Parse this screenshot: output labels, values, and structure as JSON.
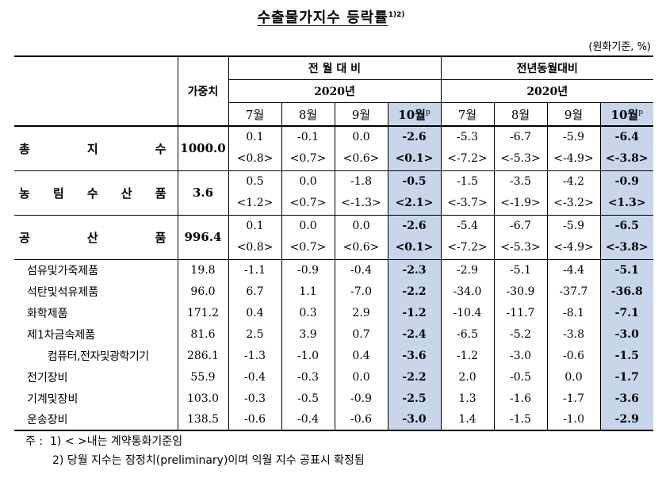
{
  "title": "수출물가지수 등락률",
  "title_sup": "1)2)",
  "unit": "(원화기준, %)",
  "header": {
    "weight": "가중치",
    "mom": "전 월 대 비",
    "yoy": "전년동월대비",
    "year": "2020년",
    "months": [
      "7월",
      "8월",
      "9월",
      "10월"
    ],
    "p_mark": "p"
  },
  "rows": [
    {
      "label": "총 지 수",
      "weight": "1000.0",
      "mom": [
        "0.1",
        "-0.1",
        "0.0",
        "-2.6"
      ],
      "mom_sub": [
        "<0.8>",
        "<0.7>",
        "<0.6>",
        "<0.1>"
      ],
      "yoy": [
        "-5.3",
        "-6.7",
        "-5.9",
        "-6.4"
      ],
      "yoy_sub": [
        "<-7.2>",
        "<-5.3>",
        "<-4.9>",
        "<-3.8>"
      ]
    },
    {
      "label": "농 림 수 산 품",
      "weight": "3.6",
      "mom": [
        "0.5",
        "0.0",
        "-1.8",
        "-0.5"
      ],
      "mom_sub": [
        "<1.2>",
        "<0.7>",
        "<-1.3>",
        "<2.1>"
      ],
      "yoy": [
        "-1.5",
        "-3.5",
        "-4.2",
        "-0.9"
      ],
      "yoy_sub": [
        "<-3.7>",
        "<-1.9>",
        "<-3.2>",
        "<1.3>"
      ]
    },
    {
      "label": "공 산 품",
      "weight": "996.4",
      "mom": [
        "0.1",
        "0.0",
        "0.0",
        "-2.6"
      ],
      "mom_sub": [
        "<0.8>",
        "<0.7>",
        "<0.6>",
        "<0.1>"
      ],
      "yoy": [
        "-5.4",
        "-6.7",
        "-5.9",
        "-6.5"
      ],
      "yoy_sub": [
        "<-7.2>",
        "<-5.3>",
        "<-4.9>",
        "<-3.8>"
      ]
    }
  ],
  "subrows": [
    {
      "label": "섬유및가죽제품",
      "weight": "19.8",
      "mom": [
        "-1.1",
        "-0.9",
        "-0.4",
        "-2.3"
      ],
      "yoy": [
        "-2.9",
        "-5.1",
        "-4.4",
        "-5.1"
      ]
    },
    {
      "label": "석탄및석유제품",
      "weight": "96.0",
      "mom": [
        "6.7",
        "1.1",
        "-7.0",
        "-2.2"
      ],
      "yoy": [
        "-34.0",
        "-30.9",
        "-37.7",
        "-36.8"
      ]
    },
    {
      "label": "화학제품",
      "weight": "171.2",
      "mom": [
        "0.4",
        "0.3",
        "2.9",
        "-1.2"
      ],
      "yoy": [
        "-10.4",
        "-11.7",
        "-8.1",
        "-7.1"
      ]
    },
    {
      "label": "제1차금속제품",
      "weight": "81.6",
      "mom": [
        "2.5",
        "3.9",
        "0.7",
        "-2.4"
      ],
      "yoy": [
        "-6.5",
        "-5.2",
        "-3.8",
        "-3.0"
      ]
    },
    {
      "label": "컴퓨터,전자및광학기기",
      "weight": "286.1",
      "mom": [
        "-1.3",
        "-1.0",
        "0.4",
        "-3.6"
      ],
      "yoy": [
        "-1.2",
        "-3.0",
        "-0.6",
        "-1.5"
      ]
    },
    {
      "label": "전기장비",
      "weight": "55.9",
      "mom": [
        "-0.4",
        "-0.3",
        "0.0",
        "-2.2"
      ],
      "yoy": [
        "2.0",
        "-0.5",
        "0.0",
        "-1.7"
      ]
    },
    {
      "label": "기계및장비",
      "weight": "103.0",
      "mom": [
        "-0.3",
        "-0.5",
        "-0.9",
        "-2.5"
      ],
      "yoy": [
        "1.3",
        "-1.6",
        "-1.7",
        "-3.6"
      ]
    },
    {
      "label": "운송장비",
      "weight": "138.5",
      "mom": [
        "-0.6",
        "-0.4",
        "-0.6",
        "-3.0"
      ],
      "yoy": [
        "1.4",
        "-1.5",
        "-1.0",
        "-2.9"
      ]
    }
  ],
  "notes": {
    "prefix": "주 :",
    "n1": "1) < >내는 계약통화기준임",
    "n2": "2) 당월 지수는 잠정치(preliminary)이며 익월 지수 공표시 확정됨"
  }
}
